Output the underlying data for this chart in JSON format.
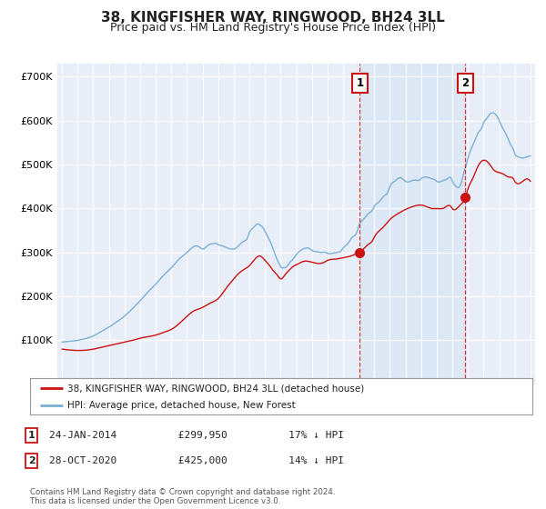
{
  "title": "38, KINGFISHER WAY, RINGWOOD, BH24 3LL",
  "subtitle": "Price paid vs. HM Land Registry's House Price Index (HPI)",
  "title_fontsize": 11,
  "subtitle_fontsize": 9,
  "ytick_vals": [
    0,
    100000,
    200000,
    300000,
    400000,
    500000,
    600000,
    700000
  ],
  "ylim": [
    0,
    730000
  ],
  "xlim_start": 1994.7,
  "xlim_end": 2025.3,
  "background_color": "#ffffff",
  "plot_bg_color": "#e8eef8",
  "shade_color": "#dce8f5",
  "grid_color": "#ffffff",
  "hpi_line_color": "#7ab0d4",
  "price_line_color": "#cc1111",
  "vline_color": "#cc1111",
  "legend_border_color": "#999999",
  "annotation_border_color": "#cc1111",
  "footnote_color": "#555555",
  "footnote_text": "Contains HM Land Registry data © Crown copyright and database right 2024.\nThis data is licensed under the Open Government Licence v3.0.",
  "legend_label_price": "38, KINGFISHER WAY, RINGWOOD, BH24 3LL (detached house)",
  "legend_label_hpi": "HPI: Average price, detached house, New Forest",
  "event1_x": 2014.07,
  "event1_label": "1",
  "event1_price": 299950,
  "event2_x": 2020.83,
  "event2_label": "2",
  "event2_price": 425000,
  "event1_row": "24-JAN-2014          £299,950          17% ↓ HPI",
  "event2_row": "28-OCT-2020          £425,000          14% ↓ HPI",
  "hpi_anchors_x": [
    1995.0,
    1995.5,
    1996.0,
    1996.5,
    1997.0,
    1997.5,
    1998.0,
    1998.5,
    1999.0,
    1999.5,
    2000.0,
    2000.5,
    2001.0,
    2001.5,
    2002.0,
    2002.5,
    2003.0,
    2003.3,
    2003.6,
    2003.9,
    2004.0,
    2004.3,
    2004.6,
    2004.9,
    2005.0,
    2005.3,
    2005.6,
    2005.9,
    2006.0,
    2006.3,
    2006.6,
    2006.9,
    2007.0,
    2007.3,
    2007.5,
    2007.7,
    2007.9,
    2008.0,
    2008.2,
    2008.5,
    2008.7,
    2008.9,
    2009.0,
    2009.2,
    2009.4,
    2009.6,
    2009.8,
    2010.0,
    2010.3,
    2010.6,
    2010.9,
    2011.0,
    2011.3,
    2011.6,
    2011.9,
    2012.0,
    2012.3,
    2012.6,
    2012.9,
    2013.0,
    2013.3,
    2013.6,
    2013.9,
    2014.0,
    2014.3,
    2014.6,
    2014.9,
    2015.0,
    2015.3,
    2015.6,
    2015.9,
    2016.0,
    2016.3,
    2016.5,
    2016.7,
    2016.9,
    2017.0,
    2017.3,
    2017.6,
    2017.9,
    2018.0,
    2018.3,
    2018.5,
    2018.7,
    2018.9,
    2019.0,
    2019.3,
    2019.5,
    2019.7,
    2019.9,
    2020.0,
    2020.2,
    2020.4,
    2020.6,
    2020.8,
    2020.9,
    2021.0,
    2021.2,
    2021.5,
    2021.7,
    2021.9,
    2022.0,
    2022.2,
    2022.4,
    2022.6,
    2022.7,
    2022.8,
    2022.9,
    2023.0,
    2023.2,
    2023.5,
    2023.7,
    2023.9,
    2024.0,
    2024.2,
    2024.5,
    2024.8,
    2025.0
  ],
  "hpi_anchors_y": [
    96000,
    98000,
    100000,
    104000,
    110000,
    120000,
    130000,
    142000,
    155000,
    172000,
    190000,
    210000,
    228000,
    248000,
    265000,
    285000,
    300000,
    310000,
    315000,
    310000,
    308000,
    315000,
    320000,
    320000,
    318000,
    315000,
    310000,
    308000,
    308000,
    315000,
    325000,
    335000,
    345000,
    358000,
    365000,
    362000,
    355000,
    348000,
    335000,
    310000,
    290000,
    275000,
    268000,
    265000,
    268000,
    278000,
    285000,
    295000,
    305000,
    310000,
    308000,
    305000,
    302000,
    300000,
    300000,
    298000,
    298000,
    300000,
    305000,
    310000,
    320000,
    335000,
    348000,
    360000,
    375000,
    388000,
    398000,
    405000,
    415000,
    428000,
    440000,
    450000,
    462000,
    468000,
    470000,
    465000,
    462000,
    462000,
    465000,
    465000,
    468000,
    472000,
    470000,
    468000,
    465000,
    462000,
    462000,
    465000,
    468000,
    470000,
    462000,
    452000,
    448000,
    462000,
    490000,
    500000,
    515000,
    535000,
    560000,
    575000,
    585000,
    595000,
    605000,
    615000,
    618000,
    617000,
    613000,
    608000,
    600000,
    585000,
    565000,
    548000,
    535000,
    525000,
    518000,
    515000,
    518000,
    520000
  ],
  "price_anchors_x": [
    1995.0,
    1995.5,
    1996.0,
    1997.0,
    1997.5,
    1998.5,
    1999.0,
    1999.5,
    2000.0,
    2001.0,
    2001.5,
    2002.0,
    2002.5,
    2003.0,
    2003.5,
    2003.8,
    2004.0,
    2004.5,
    2005.0,
    2005.5,
    2006.0,
    2006.3,
    2006.6,
    2007.0,
    2007.5,
    2007.7,
    2008.0,
    2008.3,
    2008.5,
    2008.8,
    2009.0,
    2009.3,
    2009.5,
    2009.8,
    2010.0,
    2010.5,
    2011.0,
    2011.5,
    2011.8,
    2012.0,
    2012.5,
    2013.0,
    2013.5,
    2013.8,
    2014.0,
    2014.07,
    2014.3,
    2014.6,
    2014.9,
    2015.0,
    2015.5,
    2016.0,
    2016.5,
    2017.0,
    2017.5,
    2018.0,
    2018.3,
    2018.5,
    2018.7,
    2018.9,
    2019.0,
    2019.5,
    2019.9,
    2020.0,
    2020.5,
    2020.83,
    2021.0,
    2021.3,
    2021.5,
    2021.7,
    2022.0,
    2022.2,
    2022.4,
    2022.6,
    2023.0,
    2023.3,
    2023.6,
    2023.9,
    2024.0,
    2024.5,
    2025.0
  ],
  "price_anchors_y": [
    80000,
    78000,
    77000,
    80000,
    84000,
    92000,
    96000,
    100000,
    105000,
    112000,
    118000,
    125000,
    138000,
    155000,
    168000,
    172000,
    175000,
    185000,
    195000,
    218000,
    240000,
    252000,
    260000,
    270000,
    290000,
    292000,
    282000,
    270000,
    260000,
    248000,
    240000,
    250000,
    258000,
    268000,
    272000,
    280000,
    278000,
    275000,
    278000,
    282000,
    285000,
    288000,
    292000,
    296000,
    298000,
    299950,
    308000,
    318000,
    328000,
    335000,
    355000,
    375000,
    388000,
    398000,
    405000,
    408000,
    405000,
    402000,
    400000,
    400000,
    400000,
    402000,
    405000,
    400000,
    408000,
    425000,
    445000,
    468000,
    485000,
    500000,
    510000,
    508000,
    500000,
    490000,
    482000,
    478000,
    472000,
    468000,
    462000,
    462000,
    462000
  ]
}
